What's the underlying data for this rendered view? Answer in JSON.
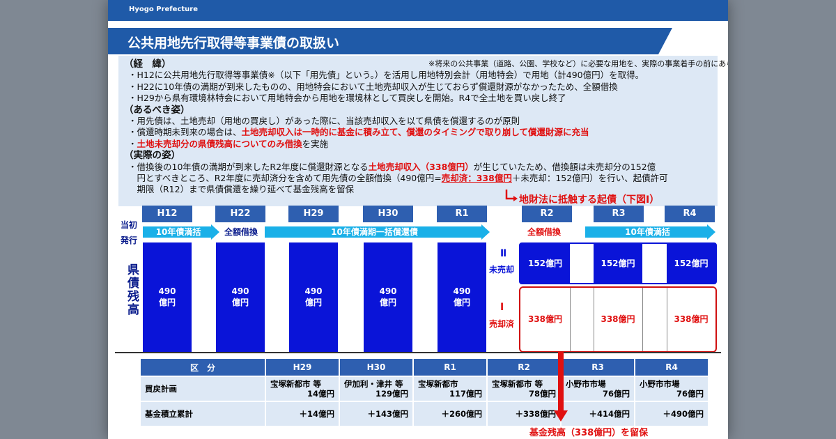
{
  "header": {
    "organization": "Hyogo Prefecture",
    "title": "公共用地先行取得等事業債の取扱い"
  },
  "sections": [
    {
      "heading": "（経　緯）",
      "note": "※将来の公共事業（道路、公園、学校など）に必要な用地を、実際の事業着手の前にあらかじめ取得するための資金",
      "lines": [
        [
          {
            "text": "・H12に公共用地先行取得等事業債※（以下「用先債」という。）を活用し用地特別会計（用地特会）で用地（計490億円）を取得。"
          }
        ],
        [
          {
            "text": "・H22に10年債の満期が到来したものの、用地特会において土地売却収入が生じておらず償還財源がなかったため、全額借換"
          }
        ],
        [
          {
            "text": "・H29から県有環境林特会において用地特会から用地を環境林として買戻しを開始。R4で全土地を買い戻し終了"
          }
        ]
      ]
    },
    {
      "heading": "（あるべき姿）",
      "lines": [
        [
          {
            "text": "・用先債は、土地売却（用地の買戻し）があった際に、当該売却収入を以て県債を償還するのが原則"
          }
        ],
        [
          {
            "text": "・償還時期未到来の場合は、"
          },
          {
            "text": "土地売却収入は一時的に基金に積み立て、償還のタイミングで取り崩して償還財源に充当",
            "emphasis": "red"
          }
        ],
        [
          {
            "text": "・"
          },
          {
            "text": "土地未売却分の県債残高についてのみ借換",
            "emphasis": "red"
          },
          {
            "text": "を実施"
          }
        ]
      ]
    },
    {
      "heading": "（実際の姿）",
      "lines": [
        [
          {
            "text": "・借換後の10年債の満期が到来したR2年度に償還財源となる"
          },
          {
            "text": "土地売却収入（338億円）",
            "emphasis": "red"
          },
          {
            "text": "が生じていたため、借換額は未売却分の152億"
          }
        ],
        [
          {
            "text": "　円とすべきところ、R2年度に売却済分を含めて用先債の全額借換（490億円="
          },
          {
            "text": "売却済：338億円",
            "emphasis": "red-underline"
          },
          {
            "text": "＋未売却：152億円）を行い、起債許可"
          }
        ],
        [
          {
            "text": "　期限（R12）まで県債償還を繰り延べて基金残高を留保"
          }
        ]
      ]
    }
  ],
  "callout": "地財法に抵触する起債（下図Ⅰ）",
  "diagram": {
    "initial_label": [
      "当初",
      "発行"
    ],
    "balance_label": "県債残高",
    "years": [
      "H12",
      "H22",
      "H29",
      "H30",
      "R1",
      "R2",
      "R3",
      "R4"
    ],
    "phases": [
      {
        "label": "10年債満括",
        "arrow": true,
        "color": "#ffffff"
      },
      {
        "label": "全額借換",
        "arrow": false,
        "color": "#0a1c8c"
      },
      {
        "label": "10年債満期一括償還債",
        "arrow": true,
        "color": "#ffffff"
      },
      {
        "label": "全額借換",
        "arrow": false,
        "color": "#e01010"
      },
      {
        "label": "10年債満括",
        "arrow": true,
        "color": "#ffffff"
      }
    ],
    "bars": [
      {
        "amount": "490",
        "unit": "億円"
      },
      {
        "amount": "490",
        "unit": "億円"
      },
      {
        "amount": "490",
        "unit": "億円"
      },
      {
        "amount": "490",
        "unit": "億円"
      },
      {
        "amount": "490",
        "unit": "億円"
      }
    ],
    "unsold": {
      "numeral": "Ⅱ",
      "label": "未売却",
      "values": [
        "152億円",
        "152億円",
        "152億円"
      ]
    },
    "sold": {
      "numeral": "Ⅰ",
      "label": "売却済",
      "values": [
        "338億円",
        "338億円",
        "338億円"
      ]
    }
  },
  "table": {
    "header": [
      "区　分",
      "H29",
      "H30",
      "R1",
      "R2",
      "R3",
      "R4"
    ],
    "rows": [
      {
        "label": "買戻計画",
        "cells": [
          [
            "宝塚新都市 等",
            "14億円"
          ],
          [
            "伊加利・津井 等",
            "129億円"
          ],
          [
            "宝塚新都市",
            "117億円"
          ],
          [
            "宝塚新都市 等",
            "78億円"
          ],
          [
            "小野市市場",
            "76億円"
          ],
          [
            "小野市市場",
            "76億円"
          ]
        ]
      },
      {
        "label": "基金積立累計",
        "cells": [
          [
            "＋14億円"
          ],
          [
            "＋143億円"
          ],
          [
            "＋260億円"
          ],
          [
            "＋338億円"
          ],
          [
            "＋414億円"
          ],
          [
            "＋490億円"
          ]
        ]
      }
    ]
  },
  "footer_note": "基金残高（338億円）を留保"
}
